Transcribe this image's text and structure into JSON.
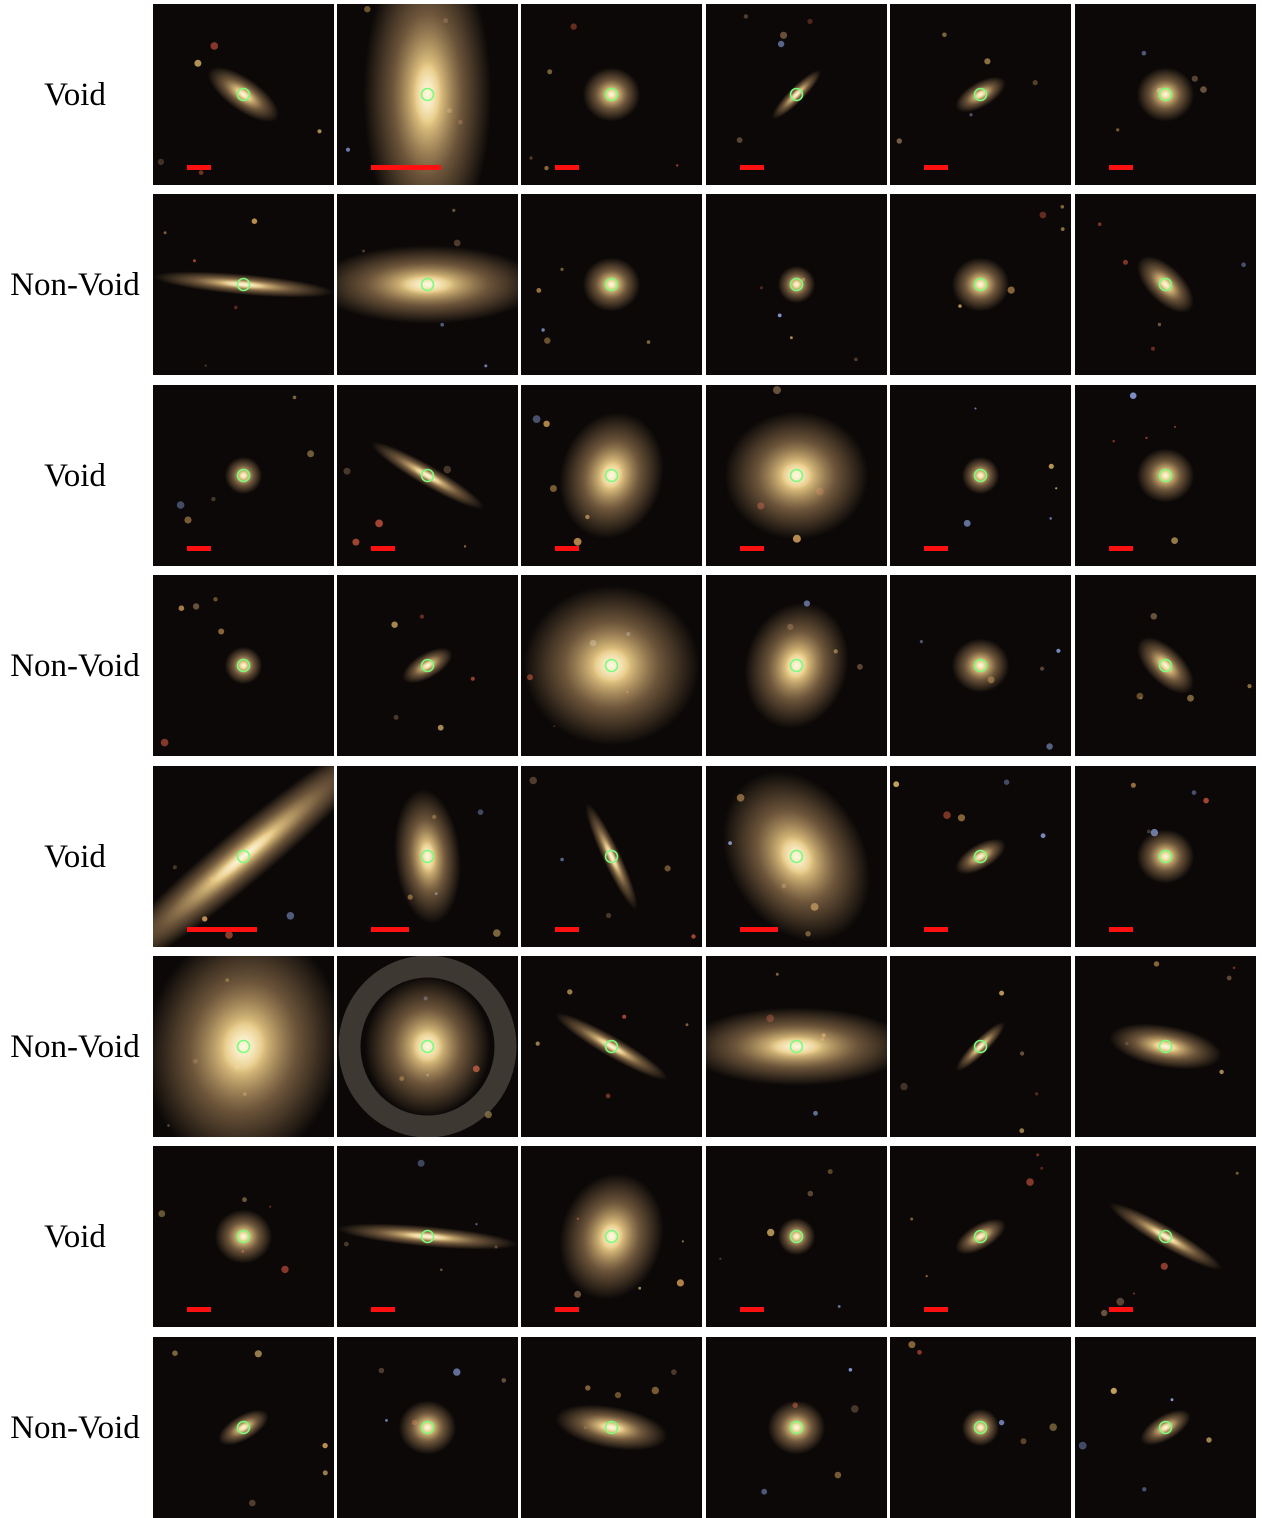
{
  "colors": {
    "background": "#0b0807",
    "galaxy_core": "#f3d48a",
    "galaxy_halo": "#b89062",
    "marker": "#7cfc7c",
    "scale_bar": "#ff1010"
  },
  "rows": [
    {
      "label": "Void",
      "panels": [
        {
          "shape": "elongated",
          "scale_bar": "short"
        },
        {
          "shape": "large-vertical",
          "scale_bar": "long"
        },
        {
          "shape": "round",
          "scale_bar": "short"
        },
        {
          "shape": "thin-diagonal",
          "scale_bar": "short"
        },
        {
          "shape": "small-elongated",
          "scale_bar": "short"
        },
        {
          "shape": "round",
          "scale_bar": "short"
        }
      ]
    },
    {
      "label": "Non-Void",
      "panels": [
        {
          "shape": "edge-on-horizontal"
        },
        {
          "shape": "large-horizontal"
        },
        {
          "shape": "round"
        },
        {
          "shape": "small-round"
        },
        {
          "shape": "round"
        },
        {
          "shape": "elongated-diagonal"
        }
      ]
    },
    {
      "label": "Void",
      "panels": [
        {
          "shape": "small-round",
          "scale_bar": "short"
        },
        {
          "shape": "edge-on-diagonal",
          "scale_bar": "short"
        },
        {
          "shape": "diffuse-oval",
          "scale_bar": "short"
        },
        {
          "shape": "large-diffuse",
          "scale_bar": "short"
        },
        {
          "shape": "small-round",
          "scale_bar": "short"
        },
        {
          "shape": "round",
          "scale_bar": "short"
        }
      ]
    },
    {
      "label": "Non-Void",
      "panels": [
        {
          "shape": "small-round"
        },
        {
          "shape": "small-elongated"
        },
        {
          "shape": "large-spiral"
        },
        {
          "shape": "diffuse-oval"
        },
        {
          "shape": "round"
        },
        {
          "shape": "elongated-diagonal"
        }
      ]
    },
    {
      "label": "Void",
      "panels": [
        {
          "shape": "huge-edge-on",
          "scale_bar": "long"
        },
        {
          "shape": "vertical-oval",
          "scale_bar": "medium"
        },
        {
          "shape": "edge-on-steep",
          "scale_bar": "short"
        },
        {
          "shape": "large-oval",
          "scale_bar": "medium"
        },
        {
          "shape": "small-elongated",
          "scale_bar": "short"
        },
        {
          "shape": "round",
          "scale_bar": "short"
        }
      ]
    },
    {
      "label": "Non-Void",
      "panels": [
        {
          "shape": "huge-round"
        },
        {
          "shape": "ringed-spiral"
        },
        {
          "shape": "edge-on-diagonal"
        },
        {
          "shape": "large-horizontal"
        },
        {
          "shape": "thin-diagonal"
        },
        {
          "shape": "elongated-horizontal"
        }
      ]
    },
    {
      "label": "Void",
      "panels": [
        {
          "shape": "round",
          "scale_bar": "short"
        },
        {
          "shape": "edge-on-horizontal",
          "scale_bar": "short"
        },
        {
          "shape": "diffuse-oval",
          "scale_bar": "short"
        },
        {
          "shape": "small-round",
          "scale_bar": "short"
        },
        {
          "shape": "small-elongated",
          "scale_bar": "short"
        },
        {
          "shape": "edge-on-diagonal",
          "scale_bar": "short"
        }
      ]
    },
    {
      "label": "Non-Void",
      "panels": [
        {
          "shape": "small-elongated"
        },
        {
          "shape": "round"
        },
        {
          "shape": "elongated-horizontal"
        },
        {
          "shape": "round"
        },
        {
          "shape": "small-round"
        },
        {
          "shape": "small-elongated"
        }
      ]
    }
  ]
}
